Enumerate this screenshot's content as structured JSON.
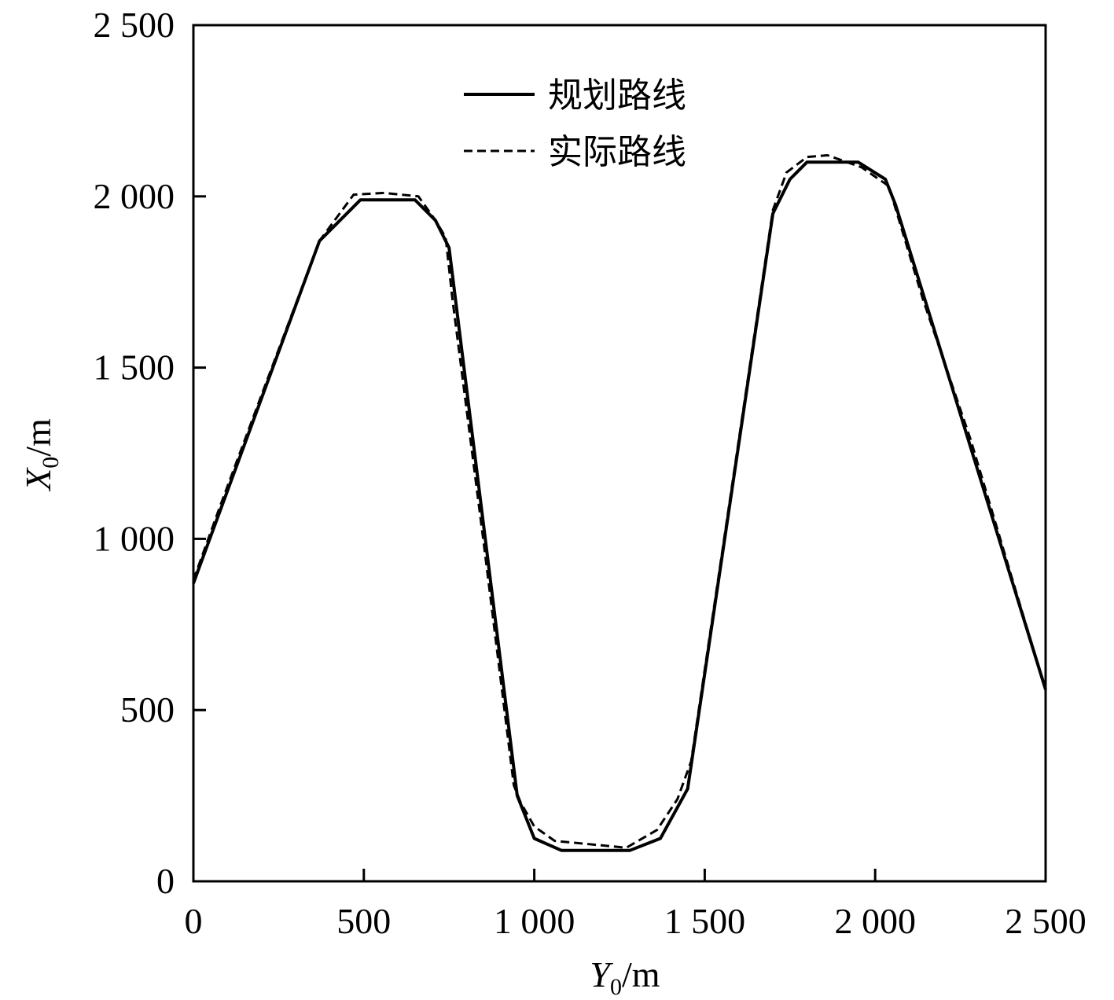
{
  "chart_data": {
    "type": "line",
    "title": "",
    "xlabel": {
      "var": "Y",
      "sub": "0",
      "unit": "/m"
    },
    "ylabel": {
      "var": "X",
      "sub": "0",
      "unit": "/m"
    },
    "xlim": [
      0,
      2500
    ],
    "ylim": [
      0,
      2500
    ],
    "xticks": [
      0,
      500,
      1000,
      1500,
      2000,
      2500
    ],
    "yticks": [
      0,
      500,
      1000,
      1500,
      2000,
      2500
    ],
    "xtick_labels": [
      "0",
      "500",
      "1 000",
      "1 500",
      "2 000",
      "2 500"
    ],
    "ytick_labels": [
      "0",
      "500",
      "1 000",
      "1 500",
      "2 000",
      "2 500"
    ],
    "grid": false,
    "legend_position": "top-center",
    "series": [
      {
        "name": "规划路线",
        "style": "solid",
        "color": "#000000",
        "points": [
          [
            0,
            870
          ],
          [
            370,
            1870
          ],
          [
            490,
            1990
          ],
          [
            650,
            1990
          ],
          [
            710,
            1930
          ],
          [
            750,
            1850
          ],
          [
            950,
            250
          ],
          [
            1000,
            125
          ],
          [
            1080,
            90
          ],
          [
            1280,
            90
          ],
          [
            1370,
            125
          ],
          [
            1450,
            270
          ],
          [
            1700,
            1950
          ],
          [
            1750,
            2050
          ],
          [
            1800,
            2100
          ],
          [
            1950,
            2100
          ],
          [
            2030,
            2050
          ],
          [
            2060,
            1975
          ],
          [
            2500,
            560
          ]
        ]
      },
      {
        "name": "实际路线",
        "style": "dashed",
        "color": "#000000",
        "points": [
          [
            0,
            880
          ],
          [
            80,
            1100
          ],
          [
            200,
            1420
          ],
          [
            370,
            1870
          ],
          [
            470,
            2005
          ],
          [
            560,
            2010
          ],
          [
            660,
            2000
          ],
          [
            710,
            1930
          ],
          [
            740,
            1880
          ],
          [
            760,
            1700
          ],
          [
            850,
            1000
          ],
          [
            940,
            280
          ],
          [
            960,
            230
          ],
          [
            1000,
            160
          ],
          [
            1060,
            118
          ],
          [
            1270,
            98
          ],
          [
            1360,
            150
          ],
          [
            1420,
            240
          ],
          [
            1460,
            350
          ],
          [
            1700,
            1960
          ],
          [
            1740,
            2070
          ],
          [
            1800,
            2115
          ],
          [
            1860,
            2120
          ],
          [
            1960,
            2085
          ],
          [
            2040,
            2030
          ],
          [
            2140,
            1700
          ],
          [
            2280,
            1290
          ],
          [
            2400,
            890
          ],
          [
            2500,
            560
          ]
        ]
      }
    ]
  }
}
